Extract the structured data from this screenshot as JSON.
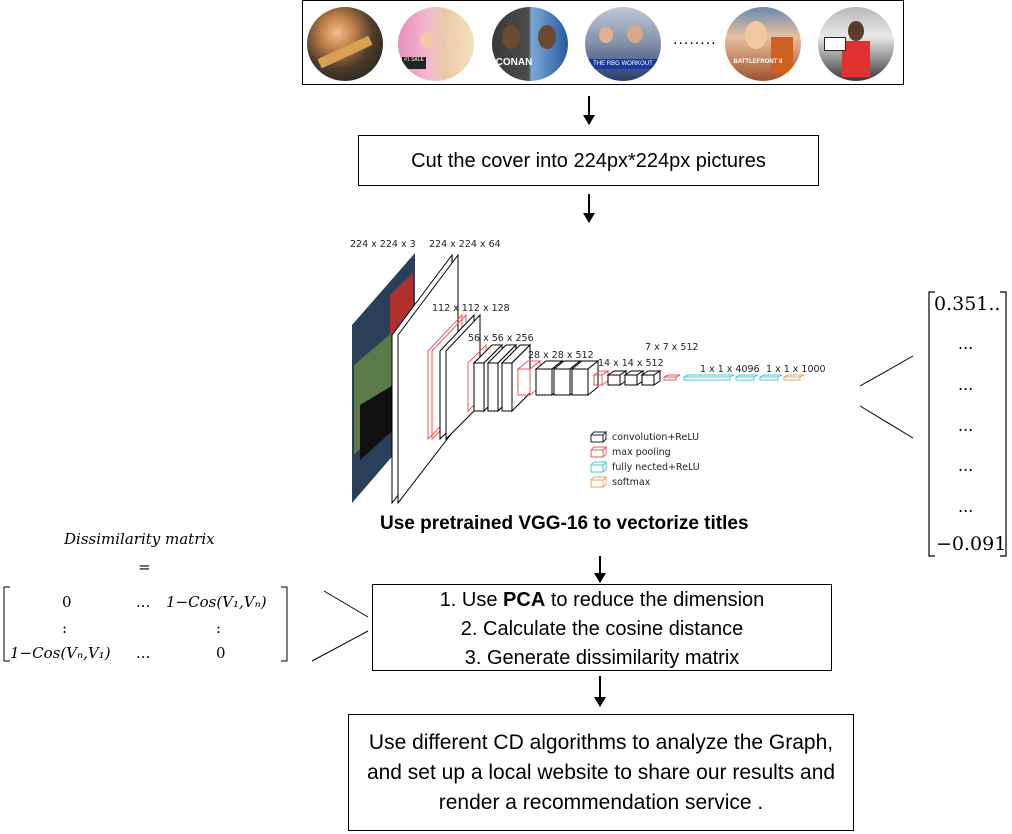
{
  "thumbnails": {
    "ellipsis": "........",
    "items": [
      {
        "name": "thumb-guitarist",
        "caption": ""
      },
      {
        "name": "thumb-pink-hair",
        "caption": "#1 SALE"
      },
      {
        "name": "thumb-conan",
        "caption": "CONAN"
      },
      {
        "name": "thumb-rbg-workout",
        "caption": "THE RBG WORKOUT"
      },
      {
        "name": "thumb-battlefront",
        "caption": "BATTLEFRONT II"
      },
      {
        "name": "thumb-sneakers",
        "caption": ""
      }
    ]
  },
  "steps": {
    "cut": "Cut the cover into 224px*224px pictures",
    "vgg_caption": "Use pretrained VGG-16 to  vectorize titles",
    "pca_line1_prefix": "1. Use ",
    "pca_line1_bold": "PCA",
    "pca_line1_suffix": " to reduce the dimension",
    "pca_line2": "2. Calculate the cosine distance",
    "pca_line3": "3.  Generate dissimilarity matrix",
    "final": "Use different CD algorithms to analyze the Graph, and set up a local website to share our results and render a recommendation service ."
  },
  "vgg": {
    "labels": {
      "input": "224 x 224 x 3",
      "conv1": "224 x 224 x 64",
      "conv2": "112 x 112 x 128",
      "conv3": "56 x 56 x 256",
      "conv4": "28 x 28 x 512",
      "conv5": "14 x 14 x 512",
      "pool5": "7 x 7 x 512",
      "fc": "1 x 1 x 4096",
      "out": "1 x 1 x 1000"
    },
    "legend": [
      {
        "label": "convolution+ReLU",
        "color": "#222222"
      },
      {
        "label": "max pooling",
        "color": "#e85a5a"
      },
      {
        "label": "fully nected+ReLU",
        "color": "#4fc7d9"
      },
      {
        "label": "softmax",
        "color": "#e0a66a"
      }
    ]
  },
  "vector": {
    "first": "0.351..",
    "dots": [
      "...",
      "...",
      "...",
      "...",
      "..."
    ],
    "last": "−0.091"
  },
  "matrix": {
    "title": "Dissimilarity matrix",
    "equals": "=",
    "r1c1": "0",
    "r1c2": "...",
    "r1c3": "1−Cos(V₁,Vₙ)",
    "r2c1": ":",
    "r2c3": ":",
    "r3c1": "1−Cos(Vₙ,V₁)",
    "r3c2": "...",
    "r3c3": "0"
  }
}
